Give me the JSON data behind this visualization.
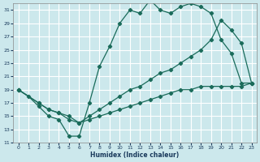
{
  "title": "",
  "xlabel": "Humidex (Indice chaleur)",
  "bg_color": "#cce8ec",
  "grid_color": "#ffffff",
  "line_color": "#1a6b5a",
  "xlim": [
    -0.5,
    23.5
  ],
  "ylim": [
    11,
    32
  ],
  "yticks": [
    11,
    13,
    15,
    17,
    19,
    21,
    23,
    25,
    27,
    29,
    31
  ],
  "xticks": [
    0,
    1,
    2,
    3,
    4,
    5,
    6,
    7,
    8,
    9,
    10,
    11,
    12,
    13,
    14,
    15,
    16,
    17,
    18,
    19,
    20,
    21,
    22,
    23
  ],
  "series1_x": [
    0,
    1,
    2,
    3,
    4,
    5,
    6,
    7,
    8,
    9,
    10,
    11,
    12,
    13,
    14,
    15,
    16,
    17,
    18,
    19,
    20,
    21,
    22,
    23
  ],
  "series1_y": [
    19,
    18,
    16.5,
    15,
    14.5,
    12,
    12,
    17,
    22.5,
    25.5,
    29,
    31,
    30.5,
    32.5,
    31,
    30.5,
    31.5,
    32,
    31.5,
    30.5,
    26.5,
    24.5,
    20,
    20
  ],
  "series2_x": [
    0,
    2,
    3,
    4,
    5,
    6,
    7,
    8,
    9,
    10,
    11,
    12,
    13,
    14,
    15,
    16,
    17,
    18,
    19,
    20,
    21,
    22,
    23
  ],
  "series2_y": [
    19,
    17,
    16,
    15.5,
    15,
    14,
    15,
    16,
    17,
    18,
    19,
    19.5,
    20.5,
    21.5,
    22,
    23,
    24,
    25,
    26.5,
    29.5,
    28,
    26,
    20
  ],
  "series3_x": [
    0,
    2,
    3,
    4,
    5,
    6,
    7,
    8,
    9,
    10,
    11,
    12,
    13,
    14,
    15,
    16,
    17,
    18,
    19,
    20,
    21,
    22,
    23
  ],
  "series3_y": [
    19,
    17,
    16,
    15.5,
    14.5,
    14,
    14.5,
    15,
    15.5,
    16,
    16.5,
    17,
    17.5,
    18,
    18.5,
    19,
    19,
    19.5,
    19.5,
    19.5,
    19.5,
    19.5,
    20
  ]
}
